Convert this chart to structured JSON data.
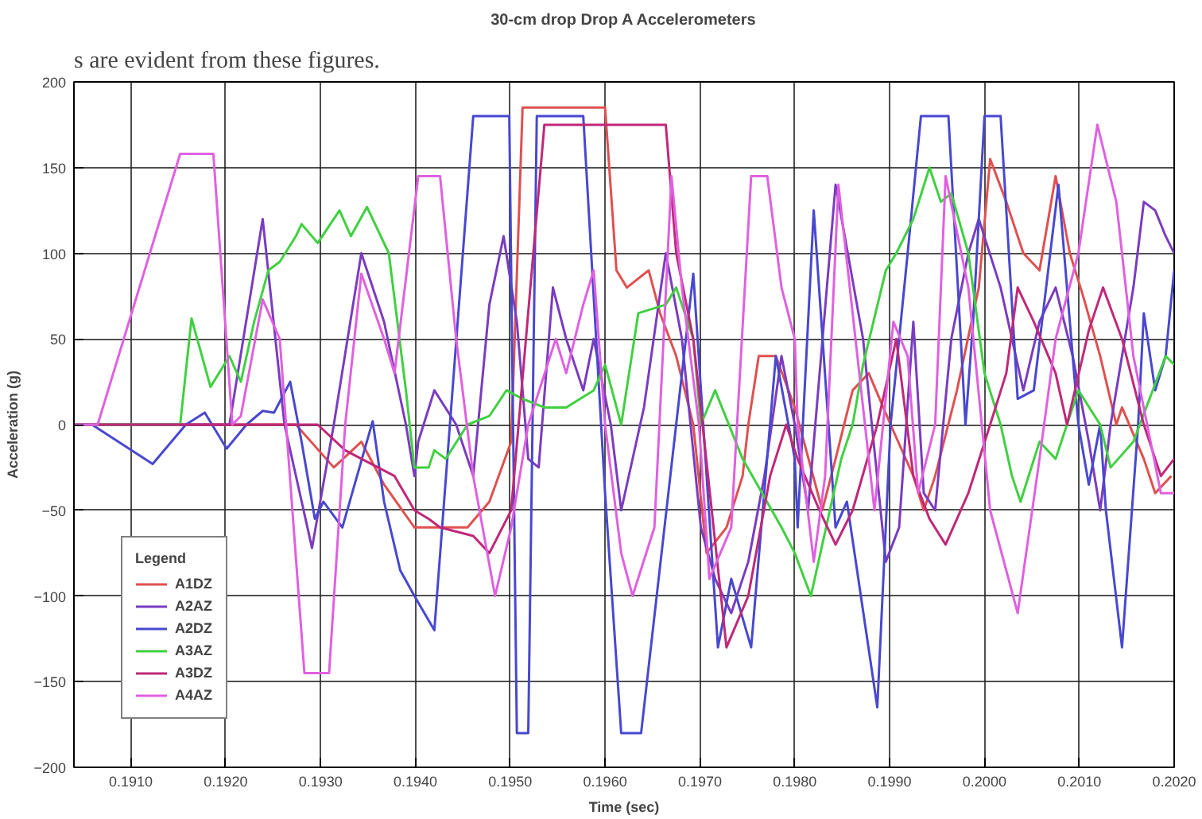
{
  "chart_data": {
    "type": "line",
    "title": "30-cm drop Drop A Accelerometers",
    "xlabel": "Time (sec)",
    "ylabel": "Acceleration (g)",
    "legend_title": "Legend",
    "annotations": [
      "s are evident from these figures."
    ],
    "xlim": [
      0.1904,
      0.202
    ],
    "ylim": [
      -200,
      200
    ],
    "xticks": [
      {
        "value": 0.191,
        "label": "0.1910"
      },
      {
        "value": 0.192,
        "label": "0.1920"
      },
      {
        "value": 0.193,
        "label": "0.1930"
      },
      {
        "value": 0.194,
        "label": "0.1940"
      },
      {
        "value": 0.195,
        "label": "0.1950"
      },
      {
        "value": 0.196,
        "label": "0.1960"
      },
      {
        "value": 0.197,
        "label": "0.1970"
      },
      {
        "value": 0.198,
        "label": "0.1980"
      },
      {
        "value": 0.199,
        "label": "0.1990"
      },
      {
        "value": 0.2,
        "label": "0.2000"
      },
      {
        "value": 0.201,
        "label": "0.2010"
      },
      {
        "value": 0.202,
        "label": "0.2020"
      }
    ],
    "yticks": [
      -200,
      -150,
      -100,
      -50,
      0,
      50,
      100,
      150,
      200
    ],
    "grid": true,
    "legend": "bottom left",
    "marker": "none",
    "line_style": "solid",
    "series": [
      {
        "name": "A1DZ",
        "color": "#e05050",
        "x": [
          0.1904,
          0.19274,
          0.19314,
          0.19343,
          0.19367,
          0.19399,
          0.19414,
          0.19455,
          0.19478,
          0.19501,
          0.19513,
          0.196,
          0.19612,
          0.19623,
          0.19646,
          0.19658,
          0.19675,
          0.19693,
          0.19707,
          0.19728,
          0.19745,
          0.19751,
          0.19762,
          0.1978,
          0.198,
          0.19829,
          0.19843,
          0.19861,
          0.19878,
          0.19901,
          0.19925,
          0.19936,
          0.19948,
          0.19971,
          0.19994,
          0.20006,
          0.20023,
          0.20041,
          0.20058,
          0.20075,
          0.2009,
          0.20104,
          0.20122,
          0.20139,
          0.20145,
          0.20168,
          0.2018,
          0.20197
        ],
        "values": [
          0,
          0,
          -25,
          -10,
          -35,
          -60,
          -60,
          -60,
          -45,
          -10,
          185,
          185,
          90,
          80,
          90,
          65,
          40,
          0,
          -75,
          -60,
          -30,
          0,
          40,
          40,
          10,
          -50,
          -20,
          20,
          30,
          0,
          -30,
          -50,
          -30,
          20,
          80,
          155,
          130,
          100,
          90,
          145,
          100,
          75,
          40,
          0,
          10,
          -20,
          -40,
          -30
        ]
      },
      {
        "name": "A2AZ",
        "color": "#7a3cc0",
        "x": [
          0.1904,
          0.19204,
          0.19239,
          0.19262,
          0.19291,
          0.19314,
          0.19343,
          0.19367,
          0.1939,
          0.19399,
          0.19403,
          0.1942,
          0.19443,
          0.19461,
          0.19478,
          0.19493,
          0.19507,
          0.19519,
          0.1953,
          0.19545,
          0.19559,
          0.19577,
          0.19588,
          0.19606,
          0.19617,
          0.19641,
          0.19664,
          0.19681,
          0.19701,
          0.19716,
          0.19733,
          0.19751,
          0.19768,
          0.19786,
          0.198,
          0.19814,
          0.19843,
          0.19872,
          0.19896,
          0.1991,
          0.19925,
          0.19936,
          0.19948,
          0.19965,
          0.19983,
          0.19994,
          0.20017,
          0.20041,
          0.20058,
          0.20075,
          0.20093,
          0.2011,
          0.20122,
          0.20133,
          0.20157,
          0.20168,
          0.2018,
          0.20191,
          0.202
        ],
        "values": [
          0,
          0,
          120,
          0,
          -72,
          0,
          100,
          60,
          0,
          -30,
          -10,
          20,
          0,
          -30,
          70,
          110,
          60,
          -20,
          -25,
          80,
          50,
          20,
          50,
          0,
          -50,
          10,
          100,
          50,
          -60,
          -90,
          -110,
          -80,
          -30,
          40,
          0,
          -50,
          140,
          50,
          -80,
          -60,
          60,
          -40,
          -50,
          50,
          100,
          120,
          80,
          20,
          60,
          80,
          40,
          -10,
          -50,
          0,
          80,
          130,
          125,
          110,
          100
        ]
      },
      {
        "name": "A2DZ",
        "color": "#4848d0",
        "x": [
          0.1904,
          0.19059,
          0.19123,
          0.19158,
          0.19178,
          0.19201,
          0.19222,
          0.19239,
          0.19251,
          0.19268,
          0.1928,
          0.19294,
          0.19303,
          0.19323,
          0.19355,
          0.19367,
          0.19384,
          0.19399,
          0.1942,
          0.19461,
          0.19499,
          0.19507,
          0.19519,
          0.19528,
          0.19577,
          0.196,
          0.19617,
          0.19638,
          0.19693,
          0.19719,
          0.19733,
          0.19754,
          0.1978,
          0.198,
          0.19803,
          0.1982,
          0.19843,
          0.19855,
          0.19887,
          0.19901,
          0.19919,
          0.19933,
          0.19962,
          0.1998,
          0.19988,
          0.2,
          0.20017,
          0.20035,
          0.20052,
          0.20078,
          0.20099,
          0.2011,
          0.20122,
          0.20128,
          0.20145,
          0.20162,
          0.20168,
          0.2018,
          0.20191,
          0.202
        ],
        "values": [
          0,
          0,
          -23,
          0,
          7,
          -14,
          0,
          8,
          7,
          25,
          -10,
          -55,
          -45,
          -60,
          2,
          -45,
          -85,
          -100,
          -120,
          180,
          180,
          -180,
          -180,
          180,
          180,
          -40,
          -180,
          -180,
          88,
          -130,
          -90,
          -130,
          40,
          -20,
          -60,
          125,
          -60,
          -45,
          -165,
          0,
          100,
          180,
          180,
          0,
          60,
          180,
          180,
          15,
          20,
          140,
          0,
          -35,
          0,
          -50,
          -130,
          0,
          65,
          20,
          40,
          90
        ]
      },
      {
        "name": "A3AZ",
        "color": "#40d040",
        "x": [
          0.1904,
          0.19152,
          0.19164,
          0.19184,
          0.19204,
          0.19216,
          0.1923,
          0.19245,
          0.19257,
          0.19274,
          0.1928,
          0.19297,
          0.1932,
          0.19332,
          0.19349,
          0.19372,
          0.1939,
          0.19399,
          0.19414,
          0.1942,
          0.19432,
          0.19455,
          0.19478,
          0.19496,
          0.19513,
          0.19536,
          0.19559,
          0.19588,
          0.196,
          0.19617,
          0.19635,
          0.19664,
          0.19675,
          0.19693,
          0.19701,
          0.19716,
          0.19745,
          0.19786,
          0.198,
          0.19817,
          0.19829,
          0.19849,
          0.19861,
          0.19872,
          0.19896,
          0.19907,
          0.19925,
          0.19942,
          0.19954,
          0.19965,
          0.19983,
          0.2,
          0.20017,
          0.20029,
          0.20038,
          0.20058,
          0.20075,
          0.20099,
          0.20122,
          0.20133,
          0.20157,
          0.20174,
          0.20191,
          0.202
        ],
        "values": [
          0,
          0,
          62,
          22,
          40,
          25,
          60,
          90,
          95,
          110,
          117,
          106,
          125,
          110,
          127,
          100,
          20,
          -25,
          -25,
          -15,
          -20,
          0,
          5,
          20,
          15,
          10,
          10,
          20,
          35,
          0,
          65,
          70,
          80,
          50,
          0,
          20,
          -20,
          -60,
          -75,
          -100,
          -70,
          -20,
          0,
          35,
          90,
          100,
          120,
          150,
          130,
          135,
          100,
          30,
          0,
          -30,
          -45,
          -10,
          -20,
          20,
          0,
          -25,
          -10,
          15,
          40,
          35
        ]
      },
      {
        "name": "A3DZ",
        "color": "#c02878",
        "x": [
          0.1904,
          0.19297,
          0.19326,
          0.19378,
          0.19399,
          0.19414,
          0.19426,
          0.19461,
          0.19478,
          0.19501,
          0.19536,
          0.19664,
          0.19675,
          0.19693,
          0.19728,
          0.19751,
          0.19774,
          0.19791,
          0.19803,
          0.19826,
          0.19843,
          0.19861,
          0.19887,
          0.19907,
          0.19925,
          0.19942,
          0.19959,
          0.19983,
          0.20006,
          0.20023,
          0.20035,
          0.20052,
          0.20075,
          0.20087,
          0.2011,
          0.20125,
          0.20145,
          0.20168,
          0.20186,
          0.202
        ],
        "values": [
          0,
          0,
          -15,
          -30,
          -50,
          -55,
          -60,
          -65,
          -75,
          -50,
          175,
          175,
          100,
          50,
          -130,
          -100,
          -30,
          0,
          -20,
          -50,
          -70,
          -50,
          0,
          50,
          -30,
          -55,
          -70,
          -40,
          0,
          30,
          80,
          60,
          30,
          0,
          55,
          80,
          50,
          0,
          -30,
          -20
        ]
      },
      {
        "name": "A4AZ",
        "color": "#e060e0",
        "x": [
          0.1904,
          0.19065,
          0.19152,
          0.19187,
          0.19207,
          0.19216,
          0.19239,
          0.19257,
          0.19283,
          0.19309,
          0.19326,
          0.19343,
          0.19367,
          0.19378,
          0.19403,
          0.19426,
          0.19443,
          0.19461,
          0.19484,
          0.19501,
          0.19519,
          0.19548,
          0.19559,
          0.19577,
          0.19588,
          0.196,
          0.19617,
          0.19629,
          0.19652,
          0.1967,
          0.19681,
          0.19699,
          0.1971,
          0.19733,
          0.19754,
          0.19771,
          0.19786,
          0.198,
          0.19803,
          0.1982,
          0.19832,
          0.19846,
          0.19864,
          0.19884,
          0.19904,
          0.19919,
          0.1993,
          0.19948,
          0.19959,
          0.19983,
          0.20006,
          0.20035,
          0.20058,
          0.20075,
          0.20099,
          0.20119,
          0.20139,
          0.20157,
          0.20186,
          0.202
        ],
        "values": [
          0,
          0,
          158,
          158,
          0,
          5,
          73,
          50,
          -145,
          -145,
          0,
          88,
          50,
          30,
          145,
          145,
          50,
          -30,
          -100,
          -60,
          0,
          50,
          30,
          70,
          90,
          0,
          -75,
          -100,
          -60,
          145,
          80,
          0,
          -90,
          -60,
          145,
          145,
          80,
          50,
          0,
          -80,
          -30,
          140,
          50,
          -50,
          60,
          40,
          -40,
          0,
          145,
          80,
          -50,
          -110,
          -20,
          50,
          100,
          175,
          130,
          40,
          -40,
          -40
        ]
      }
    ]
  }
}
